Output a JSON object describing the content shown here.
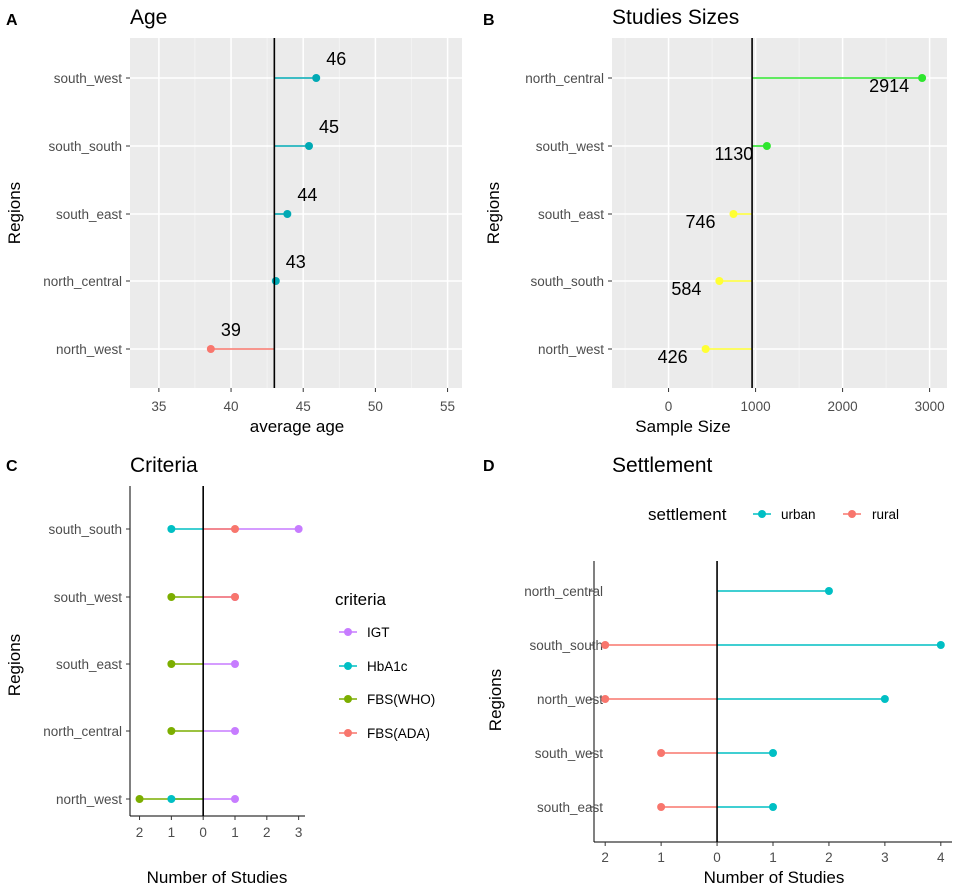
{
  "chart_data": [
    {
      "panel": "A",
      "type": "lollipop",
      "title": "Age",
      "xlabel": "average age",
      "ylabel": "Regions",
      "baseline": 43,
      "xlim": [
        33,
        56
      ],
      "xticks": [
        35,
        40,
        45,
        50,
        55
      ],
      "categories": [
        "south_west",
        "south_south",
        "south_east",
        "north_central",
        "north_west"
      ],
      "values": [
        45.9,
        45.4,
        43.9,
        43.1,
        38.6
      ],
      "labels": [
        "46",
        "45",
        "44",
        "43",
        "39"
      ],
      "colors": [
        "#00a9b4",
        "#00a9b4",
        "#00a9b4",
        "#00a9b4",
        "#f8766d"
      ]
    },
    {
      "panel": "B",
      "type": "lollipop",
      "title": "Studies Sizes",
      "xlabel": "Sample Size",
      "ylabel": "Regions",
      "baseline": 960,
      "xlim": [
        -650,
        3200
      ],
      "xticks": [
        0,
        1000,
        2000,
        3000
      ],
      "categories": [
        "north_central",
        "south_west",
        "south_east",
        "south_south",
        "north_west"
      ],
      "values": [
        2914,
        1130,
        746,
        584,
        426
      ],
      "labels": [
        "2914",
        "1130",
        "746",
        "584",
        "426"
      ],
      "colors": [
        "#2ee62e",
        "#2ee62e",
        "#ffff33",
        "#ffff33",
        "#ffff33"
      ]
    },
    {
      "panel": "C",
      "type": "diverging-lollipop",
      "title": "Criteria",
      "xlabel": "Number of Studies",
      "ylabel": "Regions",
      "xlim": [
        -2.3,
        3.2
      ],
      "xticks": [
        -2,
        -1,
        0,
        1,
        2,
        3
      ],
      "xtick_labels": [
        "2",
        "1",
        "0",
        "1",
        "2",
        "3"
      ],
      "categories": [
        "south_south",
        "south_west",
        "south_east",
        "north_central",
        "north_west"
      ],
      "legend_title": "criteria",
      "series": [
        {
          "name": "IGT",
          "color": "#c77cff",
          "values": [
            3,
            1,
            1,
            1,
            1
          ]
        },
        {
          "name": "HbA1c",
          "color": "#00bfc4",
          "values": [
            -1,
            null,
            null,
            null,
            -1
          ]
        },
        {
          "name": "FBS(WHO)",
          "color": "#7cae00",
          "values": [
            null,
            -1,
            -1,
            -1,
            -2
          ]
        },
        {
          "name": "FBS(ADA)",
          "color": "#f8766d",
          "values": [
            1,
            1,
            null,
            null,
            null
          ]
        }
      ]
    },
    {
      "panel": "D",
      "type": "diverging-lollipop",
      "title": "Settlement",
      "xlabel": "Number of Studies",
      "ylabel": "Regions",
      "xlim": [
        -2.2,
        4.2
      ],
      "xticks": [
        -2,
        -1,
        0,
        1,
        2,
        3,
        4
      ],
      "xtick_labels": [
        "2",
        "1",
        "0",
        "1",
        "2",
        "3",
        "4"
      ],
      "categories": [
        "north_central",
        "south_south",
        "north_west",
        "south_west",
        "south_east"
      ],
      "legend_title": "settlement",
      "series": [
        {
          "name": "urban",
          "color": "#00bfc4",
          "values": [
            2,
            4,
            3,
            1,
            1
          ]
        },
        {
          "name": "rural",
          "color": "#f8766d",
          "values": [
            null,
            -2,
            -2,
            -1,
            -1
          ]
        }
      ]
    }
  ]
}
